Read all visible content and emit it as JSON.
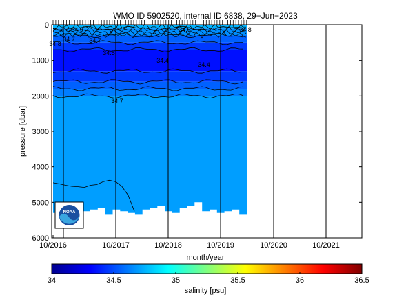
{
  "chart_data": {
    "type": "heatmap",
    "title": "WMO ID 5902520, internal ID 6838, 29−Jun−2023",
    "xlabel": "month/year",
    "ylabel": "pressure [dbar]",
    "x_tick_labels": [
      "10/2016",
      "10/2017",
      "10/2018",
      "10/2019",
      "10/2020",
      "10/2021"
    ],
    "y_ticks": [
      0,
      1000,
      2000,
      3000,
      4000,
      5000,
      6000
    ],
    "y_tick_labels": [
      "0",
      "1000",
      "2000",
      "3000",
      "4000",
      "5000",
      "6000"
    ],
    "ylim": [
      0,
      6000
    ],
    "y_reversed": true,
    "grid": "vertical",
    "colorbar": {
      "label": "salinity [psu]",
      "ticks": [
        34,
        34.5,
        35,
        35.5,
        36,
        36.5
      ],
      "tick_labels": [
        "34",
        "34.5",
        "35",
        "35.5",
        "36",
        "36.5"
      ],
      "range": [
        34,
        36.5
      ],
      "colormap": "jet"
    },
    "contour_labels": [
      "34.7",
      "34.7",
      "34.5",
      "34.4",
      "34.4",
      "34.7",
      "34.8",
      "34.6",
      "34.9",
      "34.8"
    ],
    "contour_levels": [
      34.3,
      34.4,
      34.5,
      34.6,
      34.7,
      34.8,
      34.9
    ],
    "data_extent": {
      "x_start": "10/2016",
      "x_end": "07/2019"
    },
    "max_profile_depth": [
      5300,
      5000,
      5100,
      5300,
      5250,
      5200,
      5150,
      5350,
      5200,
      5250,
      5300,
      5350,
      5200,
      5150,
      5100,
      5250,
      5300,
      5150,
      5100,
      5000,
      5250,
      5200,
      5300,
      5250,
      5200,
      5350
    ],
    "lower_contour_depth": [
      4450,
      4480,
      4520,
      4550,
      4560,
      4580,
      4520,
      4500,
      4420,
      4380,
      4420,
      4550,
      4800,
      5250
    ],
    "salinity_layers": [
      {
        "top": 0,
        "bottom": 100,
        "salinity": 34.75
      },
      {
        "top": 100,
        "bottom": 300,
        "salinity": 34.66
      },
      {
        "top": 300,
        "bottom": 500,
        "salinity": 34.55
      },
      {
        "top": 500,
        "bottom": 700,
        "salinity": 34.45
      },
      {
        "top": 700,
        "bottom": 1300,
        "salinity": 34.35
      },
      {
        "top": 1300,
        "bottom": 1600,
        "salinity": 34.45
      },
      {
        "top": 1600,
        "bottom": 1800,
        "salinity": 34.55
      },
      {
        "top": 1800,
        "bottom": 2000,
        "salinity": 34.62
      },
      {
        "top": 2000,
        "bottom": 6000,
        "salinity": 34.7
      }
    ],
    "logo_text": "NOAA"
  }
}
